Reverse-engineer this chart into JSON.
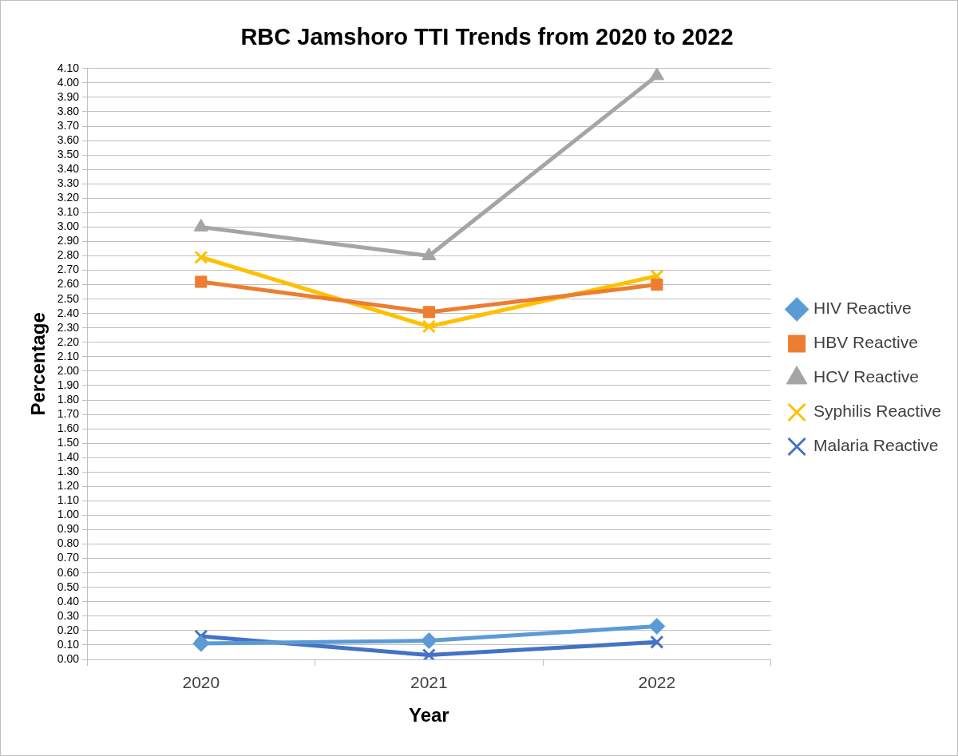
{
  "chart_data": {
    "type": "line",
    "title": "RBC Jamshoro TTI Trends from 2020 to 2022",
    "xlabel": "Year",
    "ylabel": "Percentage",
    "categories": [
      "2020",
      "2021",
      "2022"
    ],
    "series": [
      {
        "name": "HIV Reactive",
        "color": "#5b9bd5",
        "marker": "diamond",
        "values": [
          0.11,
          0.13,
          0.23
        ]
      },
      {
        "name": "HBV Reactive",
        "color": "#ed7d31",
        "marker": "square",
        "values": [
          2.62,
          2.41,
          2.6
        ]
      },
      {
        "name": "HCV Reactive",
        "color": "#a5a5a5",
        "marker": "triangle",
        "values": [
          3.0,
          2.8,
          4.05
        ]
      },
      {
        "name": "Syphilis Reactive",
        "color": "#ffc000",
        "marker": "cross",
        "values": [
          2.79,
          2.31,
          2.66
        ]
      },
      {
        "name": "Malaria Reactive",
        "color": "#4472c4",
        "marker": "cross",
        "values": [
          0.16,
          0.03,
          0.12
        ]
      }
    ],
    "ylim": [
      0,
      4.1
    ],
    "yticks": [
      {
        "value": 0,
        "label": "0.00"
      },
      {
        "value": 0.1,
        "label": "0.10"
      },
      {
        "value": 0.2,
        "label": "0.20"
      },
      {
        "value": 0.3,
        "label": "0.30"
      },
      {
        "value": 0.4,
        "label": "0.40"
      },
      {
        "value": 0.5,
        "label": "0.50"
      },
      {
        "value": 0.6,
        "label": "0.60"
      },
      {
        "value": 0.7,
        "label": "0.70"
      },
      {
        "value": 0.8,
        "label": "0.80"
      },
      {
        "value": 0.9,
        "label": "0.90"
      },
      {
        "value": 1,
        "label": "1.00"
      },
      {
        "value": 1.1,
        "label": "1.10"
      },
      {
        "value": 1.2,
        "label": "1.20"
      },
      {
        "value": 1.3,
        "label": "1.30"
      },
      {
        "value": 1.4,
        "label": "1.40"
      },
      {
        "value": 1.5,
        "label": "1.50"
      },
      {
        "value": 1.6,
        "label": "1.60"
      },
      {
        "value": 1.7,
        "label": "1.70"
      },
      {
        "value": 1.8,
        "label": "1.80"
      },
      {
        "value": 1.9,
        "label": "1.90"
      },
      {
        "value": 2,
        "label": "2.00"
      },
      {
        "value": 2.1,
        "label": "2.10"
      },
      {
        "value": 2.2,
        "label": "2.20"
      },
      {
        "value": 2.3,
        "label": "2.30"
      },
      {
        "value": 2.4,
        "label": "2.40"
      },
      {
        "value": 2.5,
        "label": "2.50"
      },
      {
        "value": 2.6,
        "label": "2.60"
      },
      {
        "value": 2.7,
        "label": "2.70"
      },
      {
        "value": 2.8,
        "label": "2.80"
      },
      {
        "value": 2.9,
        "label": "2.90"
      },
      {
        "value": 3,
        "label": "3.00"
      },
      {
        "value": 3.1,
        "label": "3.10"
      },
      {
        "value": 3.2,
        "label": "3.20"
      },
      {
        "value": 3.3,
        "label": "3.30"
      },
      {
        "value": 3.4,
        "label": "3.40"
      },
      {
        "value": 3.5,
        "label": "3.50"
      },
      {
        "value": 3.6,
        "label": "3.60"
      },
      {
        "value": 3.7,
        "label": "3.70"
      },
      {
        "value": 3.8,
        "label": "3.80"
      },
      {
        "value": 3.9,
        "label": "3.90"
      },
      {
        "value": 4,
        "label": "4.00"
      },
      {
        "value": 4.1,
        "label": "4.10"
      }
    ],
    "grid": "y",
    "legend": "right",
    "line_style": "solid"
  }
}
